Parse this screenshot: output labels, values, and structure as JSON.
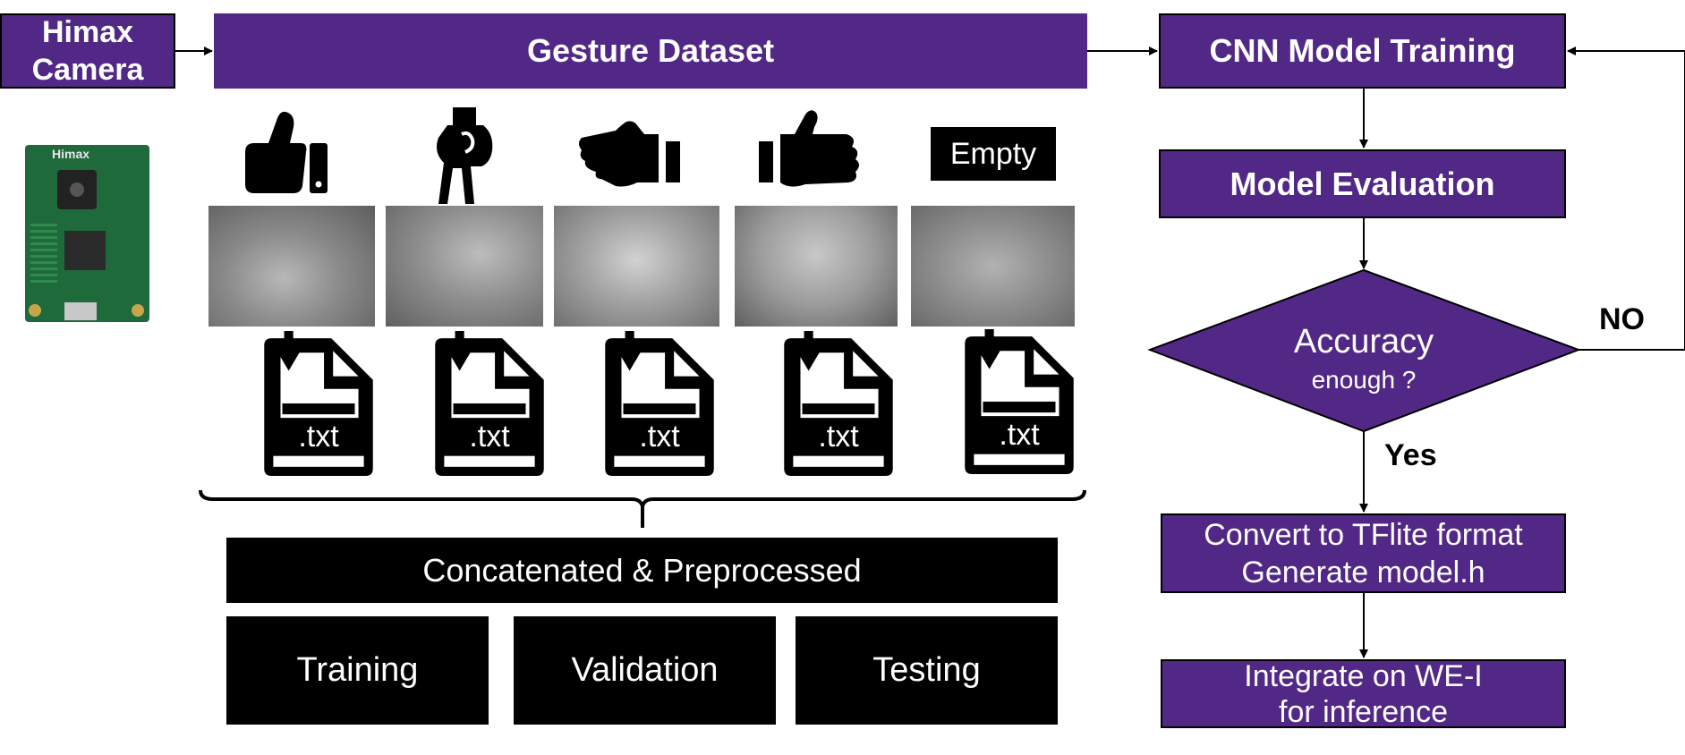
{
  "colors": {
    "purple": "#522886",
    "black": "#000000",
    "white": "#ffffff"
  },
  "camera": {
    "label_line1": "Himax",
    "label_line2": "Camera",
    "board_text": "Himax"
  },
  "dataset": {
    "title": "Gesture Dataset"
  },
  "gestures": [
    {
      "icon": "thumbs-up-icon"
    },
    {
      "icon": "two-fingers-walking-icon"
    },
    {
      "icon": "hand-right-icon"
    },
    {
      "icon": "hand-left-icon"
    },
    {
      "icon": "empty-label",
      "label": "Empty"
    }
  ],
  "file_label": ".txt",
  "concat": {
    "label": "Concatenated & Preprocessed"
  },
  "splits": {
    "training": "Training",
    "validation": "Validation",
    "testing": "Testing"
  },
  "flow": {
    "cnn": "CNN Model Training",
    "evaluation": "Model Evaluation",
    "decision_line1": "Accuracy",
    "decision_line2": "enough ?",
    "no": "NO",
    "yes": "Yes",
    "convert_line1": "Convert to TFlite format",
    "convert_line2": "Generate model.h",
    "integrate_line1": "Integrate on WE-I",
    "integrate_line2": "for inference"
  }
}
